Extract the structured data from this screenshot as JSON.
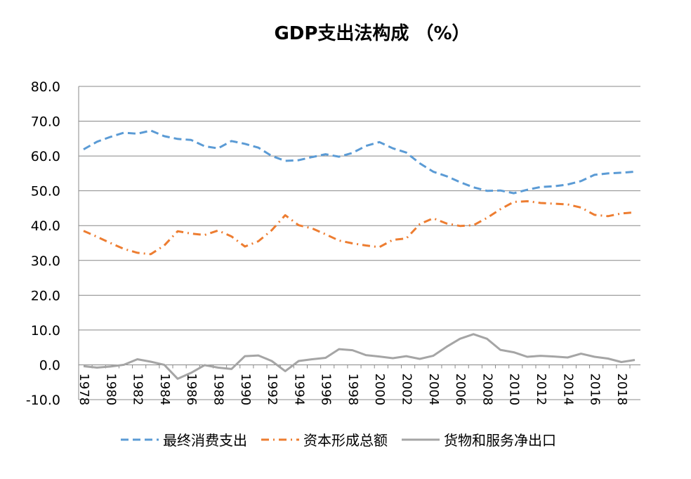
{
  "chart_data": {
    "type": "line",
    "title": "GDP支出法构成 （%）",
    "xlabel": "",
    "ylabel": "",
    "ylim": [
      -10,
      80
    ],
    "y_ticks": [
      "80.0",
      "70.0",
      "60.0",
      "50.0",
      "40.0",
      "30.0",
      "20.0",
      "10.0",
      "0.0",
      "-10.0"
    ],
    "y_tick_values": [
      80,
      70,
      60,
      50,
      40,
      30,
      20,
      10,
      0,
      -10
    ],
    "x": [
      1978,
      1979,
      1980,
      1981,
      1982,
      1983,
      1984,
      1985,
      1986,
      1987,
      1988,
      1989,
      1990,
      1991,
      1992,
      1993,
      1994,
      1995,
      1996,
      1997,
      1998,
      1999,
      2000,
      2001,
      2002,
      2003,
      2004,
      2005,
      2006,
      2007,
      2008,
      2009,
      2010,
      2011,
      2012,
      2013,
      2014,
      2015,
      2016,
      2017,
      2018,
      2019
    ],
    "x_tick_labels": [
      "1978",
      "1980",
      "1982",
      "1984",
      "1986",
      "1988",
      "1990",
      "1992",
      "1994",
      "1996",
      "1998",
      "2000",
      "2002",
      "2004",
      "2006",
      "2008",
      "2010",
      "2012",
      "2014",
      "2016",
      "2018"
    ],
    "grid": true,
    "legend_position": "bottom",
    "series": [
      {
        "name": "最终消费支出",
        "color": "#5B9BD5",
        "dash": "dash",
        "values": [
          61.9,
          64.1,
          65.5,
          66.7,
          66.4,
          67.3,
          65.7,
          64.9,
          64.6,
          62.8,
          62.2,
          64.3,
          63.5,
          62.4,
          60.0,
          58.6,
          58.8,
          59.7,
          60.5,
          59.8,
          60.9,
          62.9,
          64.0,
          62.2,
          61.0,
          57.9,
          55.5,
          54.2,
          52.5,
          51.0,
          50.0,
          50.1,
          49.3,
          50.3,
          51.1,
          51.3,
          51.8,
          52.8,
          54.6,
          55.0,
          55.2,
          55.5
        ]
      },
      {
        "name": "资本形成总额",
        "color": "#ED7D31",
        "dash": "dashdot",
        "values": [
          38.5,
          36.8,
          35.0,
          33.3,
          32.2,
          31.8,
          34.3,
          38.4,
          37.7,
          37.3,
          38.6,
          36.9,
          34.0,
          35.5,
          38.7,
          43.0,
          40.1,
          39.2,
          37.5,
          35.7,
          34.9,
          34.3,
          33.8,
          35.9,
          36.3,
          40.4,
          42.1,
          40.6,
          39.9,
          40.1,
          42.2,
          44.7,
          46.8,
          47.0,
          46.5,
          46.3,
          46.1,
          45.2,
          43.1,
          42.7,
          43.5,
          43.8
        ]
      },
      {
        "name": "货物和服务净出口",
        "color": "#A5A5A5",
        "dash": "solid",
        "values": [
          -0.4,
          -0.8,
          -0.5,
          0.0,
          1.6,
          0.9,
          0.0,
          -4.0,
          -2.3,
          -0.1,
          -0.8,
          -1.2,
          2.5,
          2.7,
          1.1,
          -1.8,
          1.1,
          1.6,
          2.0,
          4.5,
          4.2,
          2.8,
          2.4,
          1.9,
          2.5,
          1.7,
          2.6,
          5.2,
          7.5,
          8.8,
          7.5,
          4.3,
          3.6,
          2.3,
          2.6,
          2.4,
          2.1,
          3.2,
          2.3,
          1.8,
          0.8,
          1.4
        ]
      }
    ]
  }
}
